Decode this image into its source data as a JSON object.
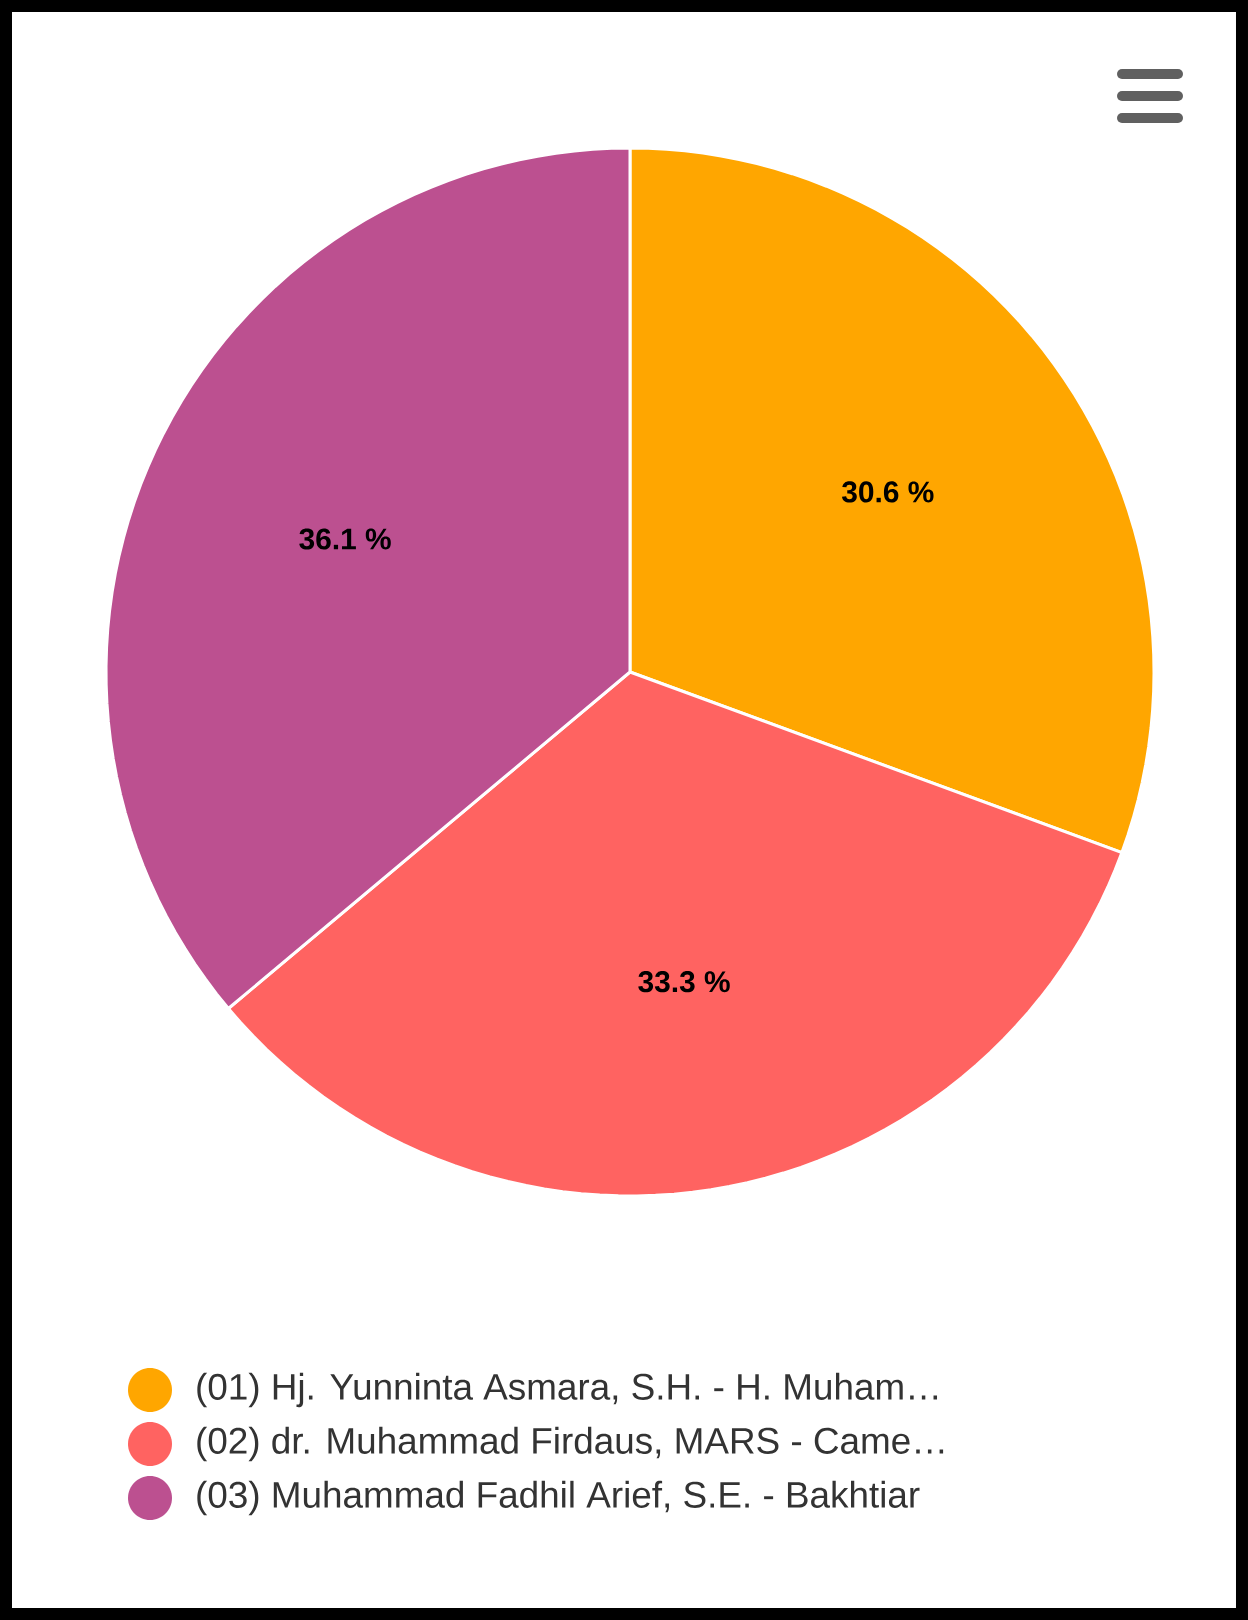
{
  "chart_data": {
    "type": "pie",
    "categories": [
      "(01) Hj. Yunninta Asmara, S.H. - H. Muham…",
      "(02) dr. Muhammad Firdaus, MARS - Came…",
      "(03) Muhammad Fadhil Arief, S.E. - Bakhtiar"
    ],
    "values": [
      30.6,
      33.3,
      36.1
    ],
    "value_labels": [
      "30.6 %",
      "33.3 %",
      "36.1 %"
    ],
    "colors": [
      "#ffa600",
      "#ff6361",
      "#bc5090"
    ],
    "legend": "bottom"
  }
}
